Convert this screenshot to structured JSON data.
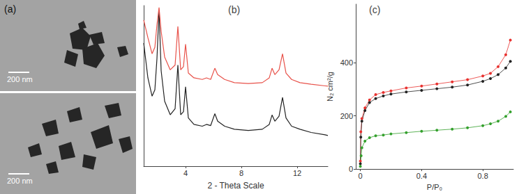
{
  "panel_a": {
    "label": "(a)",
    "images": [
      {
        "scale_bar": "200 nm"
      },
      {
        "scale_bar": "200 nm"
      }
    ]
  },
  "chart_data": [
    {
      "type": "line",
      "title": "(b)",
      "x_label": "2 - Theta Scale",
      "xlim": [
        1,
        14.2
      ],
      "xticks": [
        4,
        8,
        12
      ],
      "ylim": [
        0,
        100
      ],
      "tick_labels": "x",
      "grid": false,
      "x": [
        1.0,
        1.3,
        1.6,
        1.8,
        1.95,
        2.1,
        2.25,
        2.5,
        2.9,
        3.25,
        3.45,
        3.65,
        3.85,
        4.0,
        4.2,
        4.6,
        5.2,
        5.5,
        5.8,
        6.1,
        6.3,
        6.8,
        7.5,
        8.5,
        9.5,
        10.0,
        10.2,
        10.4,
        10.7,
        10.95,
        11.2,
        11.6,
        12.2,
        13.0,
        14.0,
        14.2
      ],
      "series": [
        {
          "color": "#222222",
          "values": [
            76.7,
            55,
            43.6,
            47.5,
            67,
            97,
            59.5,
            40.5,
            32,
            35.8,
            63,
            32,
            33.9,
            49.4,
            30,
            26,
            24.9,
            26,
            25.3,
            32.7,
            28,
            24.9,
            23,
            22.2,
            23,
            26,
            31.9,
            28,
            31.1,
            42.8,
            30,
            24.9,
            23,
            21,
            19.5,
            19.1
          ]
        },
        {
          "color": "#e8524a",
          "values": [
            91,
            80,
            70,
            74,
            88,
            98.8,
            84,
            68,
            60,
            63,
            87,
            60,
            62,
            76,
            58,
            55,
            54,
            55,
            54,
            61,
            57,
            54,
            52,
            51.5,
            52,
            55,
            61,
            57,
            60,
            70,
            58,
            54,
            52,
            51,
            50,
            49.8
          ]
        }
      ]
    },
    {
      "type": "line",
      "title": "(c)",
      "x_label": "P/P₀",
      "y_label": "N₂ cm²/g",
      "xlim": [
        -0.03,
        1
      ],
      "xticks": [
        0,
        0.4,
        0.8
      ],
      "ylim": [
        0,
        620
      ],
      "yticks": [
        0,
        200,
        400
      ],
      "grid": false,
      "marker": "circle",
      "series": [
        {
          "color": "#e8312f",
          "x": [
            0.0,
            0.003,
            0.01,
            0.03,
            0.06,
            0.1,
            0.15,
            0.2,
            0.3,
            0.4,
            0.5,
            0.6,
            0.7,
            0.8,
            0.85,
            0.9,
            0.95,
            0.98
          ],
          "values": [
            30,
            140,
            190,
            230,
            260,
            280,
            288,
            294,
            305,
            312,
            320,
            328,
            336,
            350,
            360,
            385,
            430,
            485
          ]
        },
        {
          "color": "#222222",
          "x": [
            0.0,
            0.003,
            0.01,
            0.03,
            0.06,
            0.1,
            0.15,
            0.2,
            0.3,
            0.4,
            0.5,
            0.6,
            0.7,
            0.8,
            0.85,
            0.9,
            0.95,
            0.98
          ],
          "values": [
            20,
            120,
            180,
            220,
            250,
            265,
            275,
            282,
            290,
            296,
            302,
            308,
            316,
            330,
            340,
            355,
            380,
            405
          ]
        },
        {
          "color": "#33a02c",
          "x": [
            0.0,
            0.005,
            0.01,
            0.03,
            0.06,
            0.1,
            0.15,
            0.2,
            0.3,
            0.4,
            0.5,
            0.6,
            0.7,
            0.8,
            0.85,
            0.9,
            0.95,
            0.98
          ],
          "values": [
            10,
            50,
            80,
            105,
            118,
            125,
            128,
            132,
            137,
            142,
            146,
            150,
            155,
            163,
            170,
            180,
            198,
            215
          ]
        }
      ]
    }
  ]
}
